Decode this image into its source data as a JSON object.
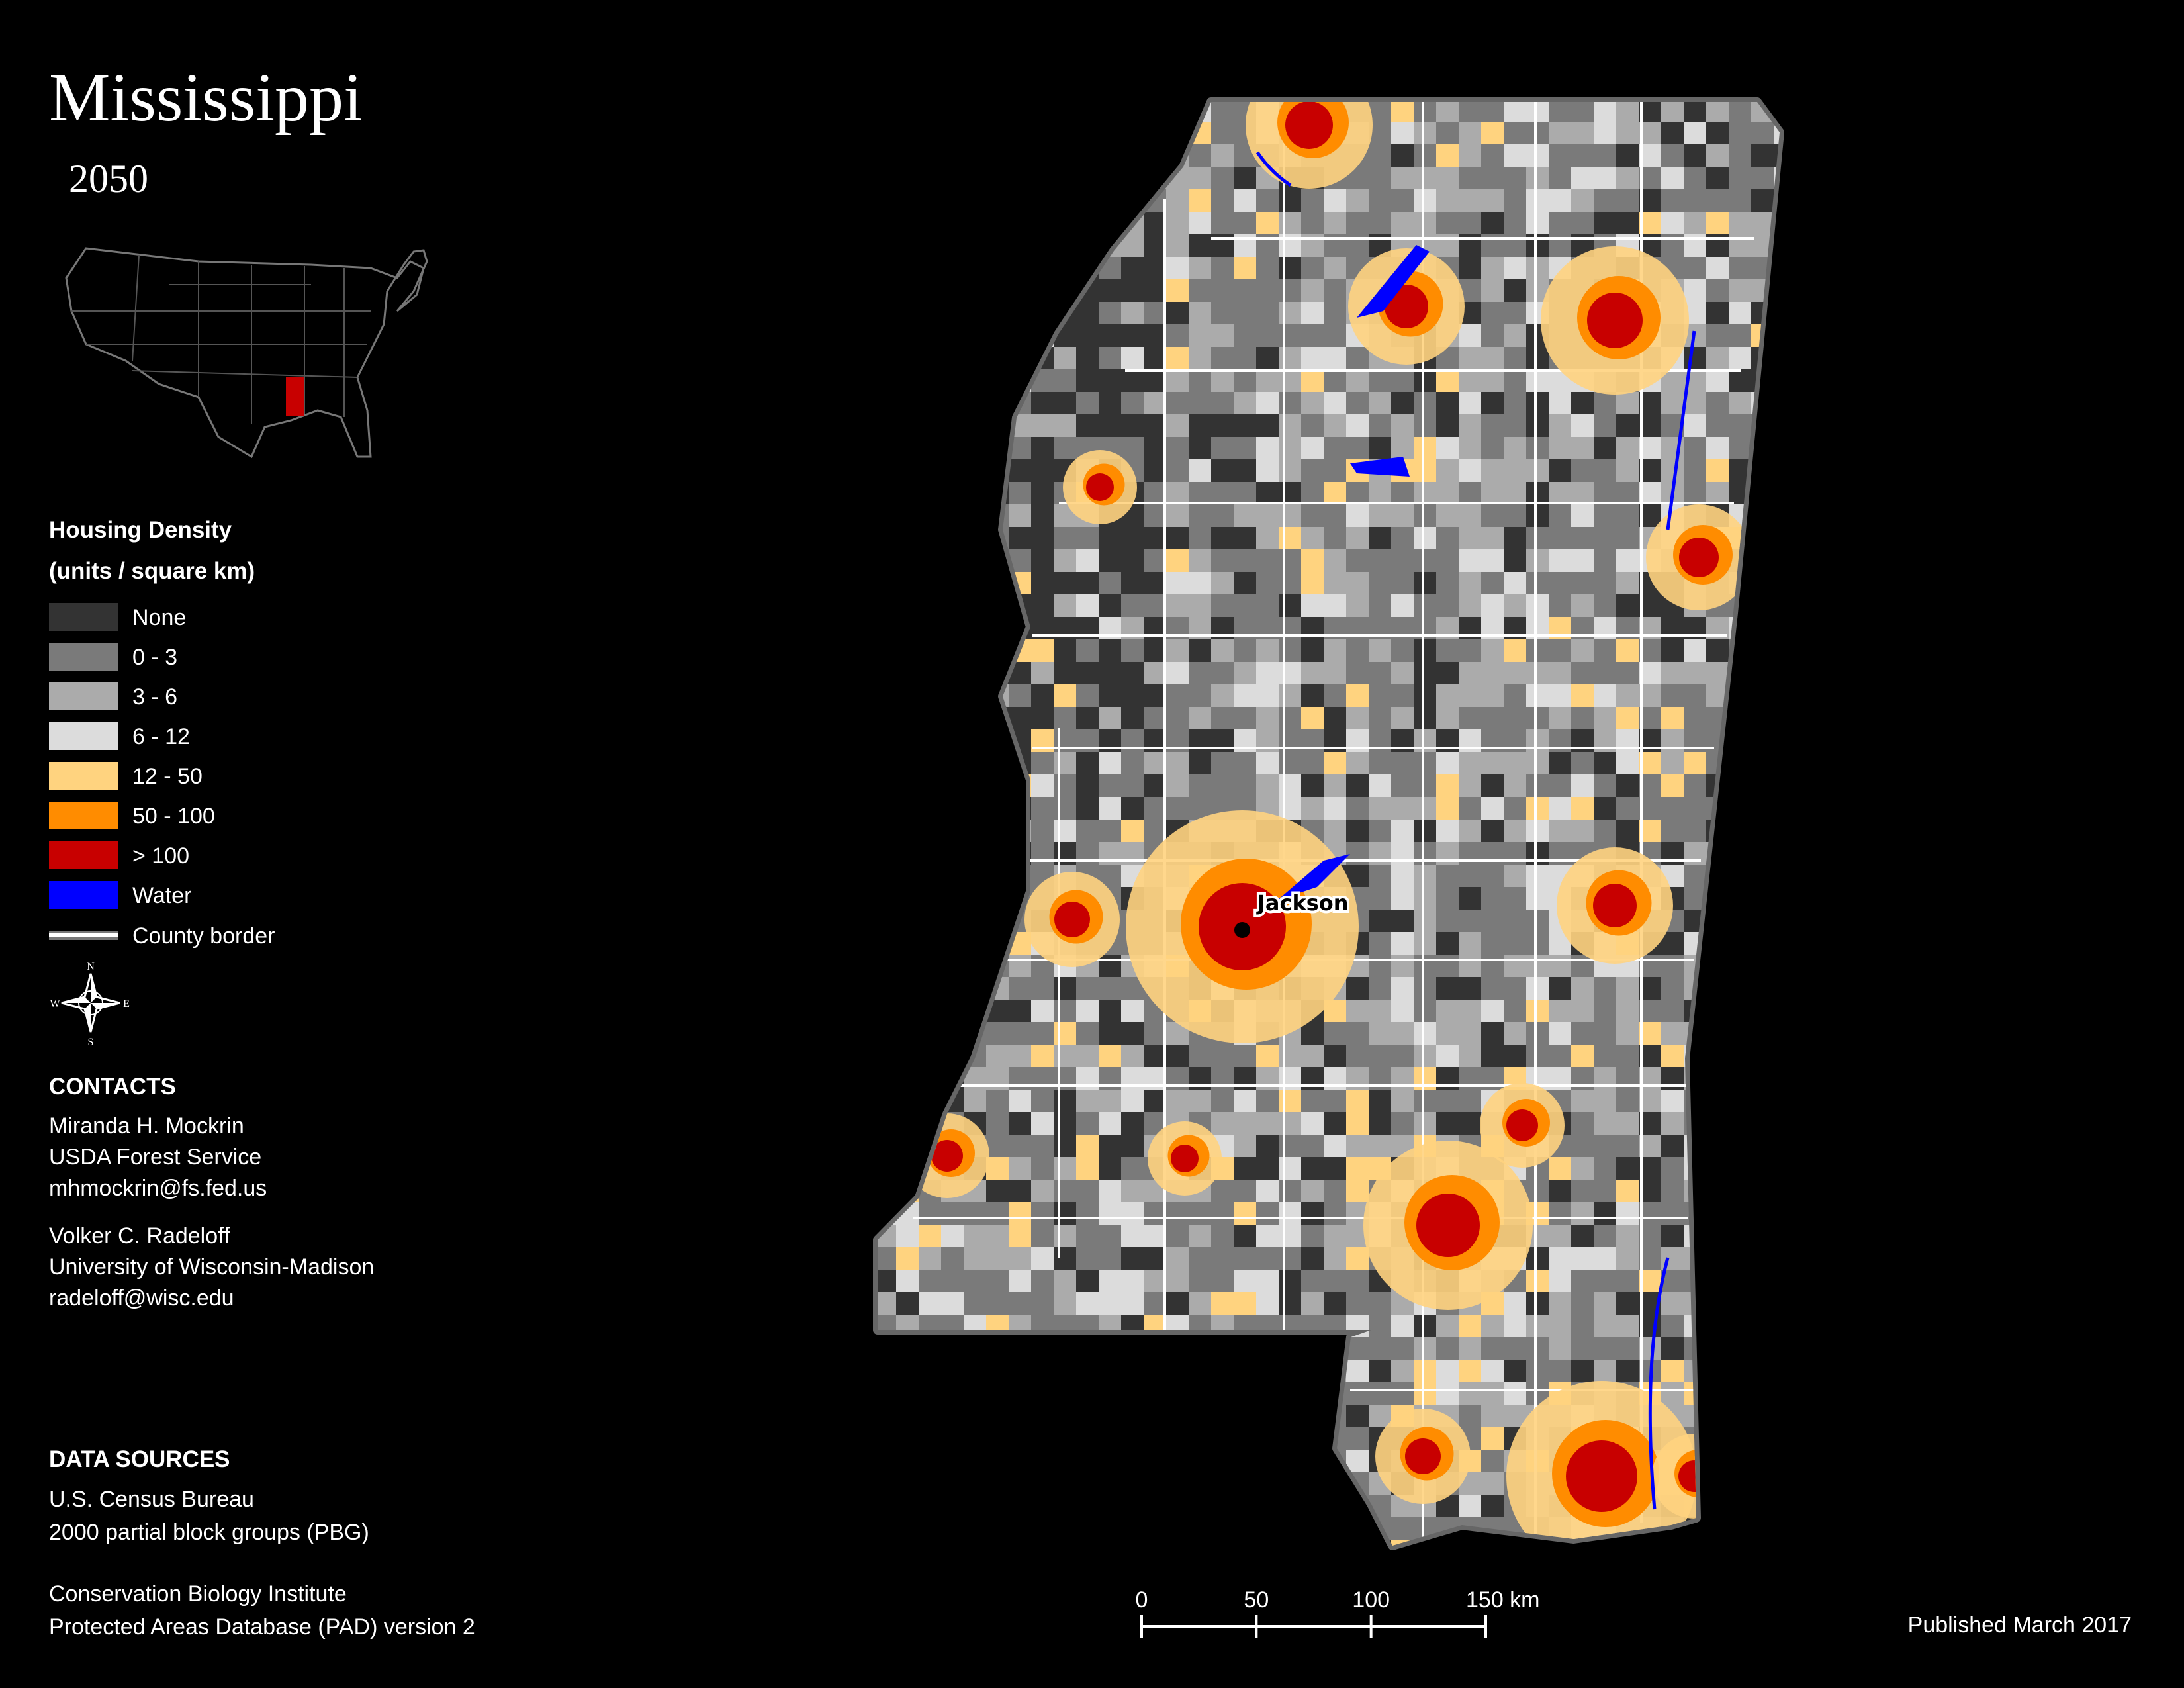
{
  "title": "Mississippi",
  "subtitle": "2050",
  "legend": {
    "title": "Housing Density",
    "subtitle": "(units / square km)",
    "items": [
      {
        "label": "None",
        "color": "#333333"
      },
      {
        "label": "0 - 3",
        "color": "#7a7a7a"
      },
      {
        "label": "3 - 6",
        "color": "#ababab"
      },
      {
        "label": "6 - 12",
        "color": "#dcdcdc"
      },
      {
        "label": "12 - 50",
        "color": "#ffd37f"
      },
      {
        "label": "50 - 100",
        "color": "#ff8c00"
      },
      {
        "label": "> 100",
        "color": "#c80000"
      },
      {
        "label": "Water",
        "color": "#0000ff"
      }
    ],
    "border_label": "County border"
  },
  "compass": {
    "north": "N",
    "east": "E",
    "south": "S",
    "west": "W"
  },
  "contacts": {
    "heading": "CONTACTS",
    "people": [
      [
        "Miranda H. Mockrin",
        "USDA Forest Service",
        "mhmockrin@fs.fed.us"
      ],
      [
        "Volker C. Radeloff",
        "University of Wisconsin-Madison",
        "radeloff@wisc.edu"
      ]
    ]
  },
  "data_sources": {
    "heading": "DATA SOURCES",
    "entries": [
      [
        "U.S. Census Bureau",
        "2000 partial block groups (PBG)"
      ],
      [
        "Conservation Biology Institute",
        "Protected Areas Database (PAD) version 2"
      ]
    ]
  },
  "city_label": "Jackson",
  "scale_bar": {
    "ticks": [
      0,
      50,
      100,
      {
        "value": 150,
        "label": "150 km"
      }
    ]
  },
  "published": "Published March 2017"
}
